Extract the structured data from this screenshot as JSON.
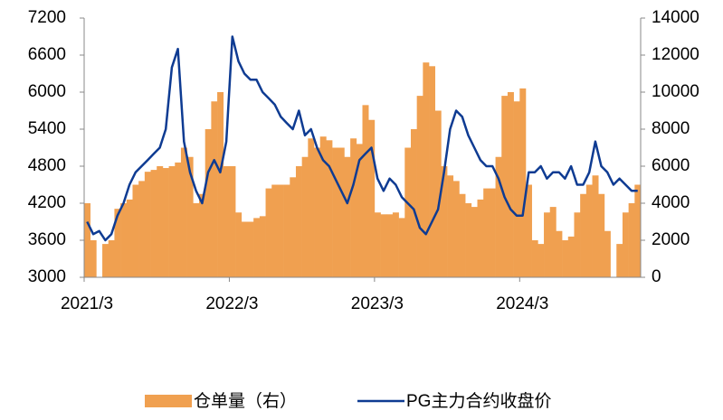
{
  "chart_data": {
    "type": "combo",
    "categories": [
      "2021/3",
      null,
      null,
      null,
      null,
      null,
      null,
      null,
      null,
      null,
      null,
      null,
      null,
      null,
      null,
      null,
      null,
      null,
      null,
      null,
      null,
      null,
      null,
      null,
      "2022/3",
      null,
      null,
      null,
      null,
      null,
      null,
      null,
      null,
      null,
      null,
      null,
      null,
      null,
      null,
      null,
      null,
      null,
      null,
      null,
      null,
      null,
      null,
      null,
      "2023/3",
      null,
      null,
      null,
      null,
      null,
      null,
      null,
      null,
      null,
      null,
      null,
      null,
      null,
      null,
      null,
      null,
      null,
      null,
      null,
      null,
      null,
      null,
      null,
      "2024/3",
      null,
      null,
      null,
      null,
      null,
      null,
      null,
      null,
      null,
      null,
      null,
      null,
      null,
      null,
      null,
      null,
      null,
      null,
      null
    ],
    "series": [
      {
        "name": "仓单量（右）",
        "type": "bar",
        "axis": "y2",
        "color": "#f0a050",
        "values": [
          4000,
          2000,
          0,
          1800,
          2000,
          3700,
          4000,
          4200,
          5000,
          5200,
          5700,
          5800,
          6000,
          5900,
          6000,
          6200,
          7000,
          6500,
          4000,
          4500,
          8000,
          9500,
          10000,
          6000,
          6000,
          3500,
          3000,
          3000,
          3200,
          3300,
          4800,
          5000,
          5000,
          5000,
          5400,
          6000,
          6500,
          7500,
          7000,
          7600,
          7400,
          7000,
          7000,
          6500,
          7500,
          7200,
          9300,
          8500,
          3500,
          3400,
          3400,
          3500,
          3200,
          7000,
          8000,
          9800,
          11600,
          11400,
          9000,
          6000,
          5500,
          5200,
          4500,
          4000,
          3800,
          4200,
          4800,
          4800,
          6500,
          9800,
          10000,
          9500,
          10200,
          5000,
          2000,
          1800,
          3500,
          3800,
          2500,
          2000,
          2200,
          3500,
          4500,
          5000,
          5500,
          4500,
          2500,
          0,
          1800,
          3500,
          4000,
          5000
        ]
      },
      {
        "name": "PG主力合约收盘价",
        "type": "line",
        "color": "#0e3b92",
        "values": [
          3900,
          3700,
          3750,
          3600,
          3700,
          4000,
          4200,
          4500,
          4700,
          4800,
          4900,
          5000,
          5100,
          5400,
          6400,
          6700,
          5200,
          4700,
          4400,
          4200,
          4700,
          4900,
          4700,
          5200,
          6900,
          6500,
          6300,
          6200,
          6200,
          6000,
          5900,
          5800,
          5600,
          5500,
          5400,
          5700,
          5300,
          5400,
          5100,
          4900,
          4800,
          4600,
          4400,
          4200,
          4500,
          4900,
          5000,
          5100,
          4600,
          4400,
          4600,
          4500,
          4300,
          4200,
          4100,
          3800,
          3700,
          3900,
          4100,
          4700,
          5400,
          5700,
          5600,
          5300,
          5100,
          4900,
          4800,
          4800,
          4600,
          4300,
          4100,
          4000,
          4000,
          4700,
          4700,
          4800,
          4600,
          4700,
          4700,
          4600,
          4800,
          4500,
          4500,
          4700,
          5200,
          4800,
          4700,
          4500,
          4600,
          4500,
          4400,
          4400
        ]
      }
    ],
    "ylim": [
      3000,
      7200
    ],
    "yticks": [
      3000,
      3600,
      4200,
      4800,
      5400,
      6000,
      6600,
      7200
    ],
    "y2lim": [
      0,
      14000
    ],
    "y2ticks": [
      0,
      2000,
      4000,
      6000,
      8000,
      10000,
      12000,
      14000
    ],
    "grid": false,
    "legend": "bottom"
  }
}
